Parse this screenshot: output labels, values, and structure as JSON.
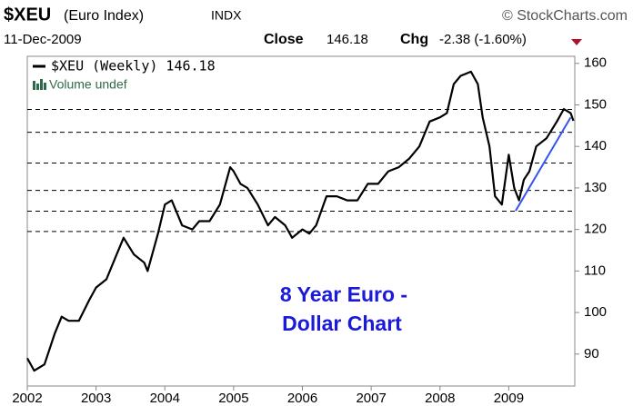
{
  "chart_data": {
    "type": "line",
    "title": "$XEU",
    "subtitle": "(Euro Index)",
    "exchange": "INDX",
    "source": "© StockCharts.com",
    "date": "11-Dec-2009",
    "close_label": "Close",
    "close_value": "146.18",
    "chg_label": "Chg",
    "chg_value": "-2.38 (-1.60%)",
    "volume_label": "Volume undef",
    "annotation": [
      "8 Year Euro -",
      "Dollar Chart"
    ],
    "x": [
      2002.0,
      2002.1,
      2002.25,
      2002.4,
      2002.5,
      2002.6,
      2002.75,
      2002.9,
      2003.0,
      2003.15,
      2003.3,
      2003.4,
      2003.55,
      2003.7,
      2003.75,
      2003.9,
      2004.0,
      2004.1,
      2004.25,
      2004.4,
      2004.5,
      2004.65,
      2004.8,
      2004.95,
      2005.0,
      2005.1,
      2005.2,
      2005.35,
      2005.5,
      2005.6,
      2005.75,
      2005.85,
      2006.0,
      2006.1,
      2006.2,
      2006.35,
      2006.5,
      2006.65,
      2006.8,
      2006.95,
      2007.1,
      2007.25,
      2007.4,
      2007.55,
      2007.7,
      2007.85,
      2008.0,
      2008.1,
      2008.2,
      2008.3,
      2008.45,
      2008.55,
      2008.62,
      2008.72,
      2008.8,
      2008.9,
      2009.0,
      2009.08,
      2009.15,
      2009.22,
      2009.3,
      2009.4,
      2009.55,
      2009.7,
      2009.8,
      2009.9,
      2009.94
    ],
    "series": [
      {
        "name": "$XEU (Weekly) 146.18",
        "color": "#000000",
        "values": [
          89,
          86,
          87.5,
          95,
          99,
          98,
          98,
          103,
          106,
          108,
          114,
          118,
          114,
          112,
          110,
          119,
          126,
          127,
          121,
          120,
          122,
          122,
          126,
          135,
          134,
          131,
          130,
          126,
          121,
          123,
          121,
          118,
          120,
          119,
          121,
          128,
          128,
          127,
          127,
          131,
          131,
          134,
          135,
          137,
          140,
          146,
          147,
          148,
          155,
          157,
          158,
          155,
          147,
          140,
          128,
          126,
          138,
          130,
          127,
          132,
          134,
          140,
          142,
          146,
          149,
          148,
          146.18
        ]
      }
    ],
    "hlines": [
      148.9,
      143.4,
      136,
      129.4,
      124.4,
      119.5
    ],
    "trendline": {
      "color": "#3355ee",
      "x": [
        2009.1,
        2009.9
      ],
      "values": [
        124.5,
        147
      ]
    },
    "xlim": [
      2002.0,
      2009.96
    ],
    "xticks": [
      2002,
      2003,
      2004,
      2005,
      2006,
      2007,
      2008,
      2009
    ],
    "ylim": [
      82.3,
      161.7
    ],
    "yticks": [
      90,
      100,
      110,
      120,
      130,
      140,
      150,
      160
    ]
  }
}
